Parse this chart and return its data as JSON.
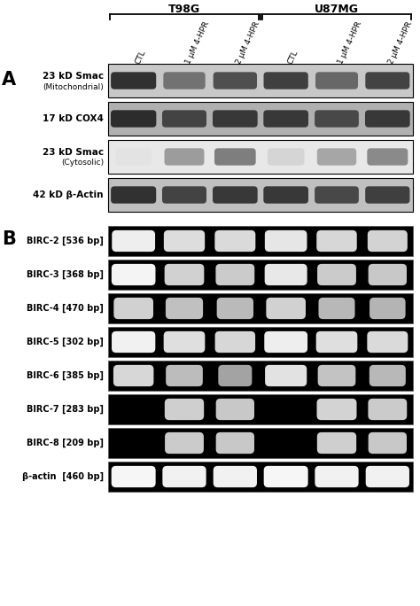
{
  "fig_width": 4.74,
  "fig_height": 6.84,
  "dpi": 100,
  "bg_color": "#ffffff",
  "header_groups": [
    [
      "T98G",
      0,
      3
    ],
    [
      "U87MG",
      3,
      6
    ]
  ],
  "col_labels": [
    "CTL",
    "1 μM 4-HPR",
    "2 μM 4-HPR",
    "CTL",
    "1 μM 4-HPR",
    "2 μM 4-HPR"
  ],
  "section_A_label": "A",
  "section_B_label": "B",
  "western_blot_rows": [
    {
      "label_line1": "23 kD Smac",
      "label_line2": "(Mitochondrial)",
      "bg": "#c8c8c8",
      "bands": [
        0.88,
        0.6,
        0.75,
        0.82,
        0.65,
        0.8
      ]
    },
    {
      "label_line1": "17 kD COX4",
      "label_line2": "",
      "bg": "#b0b0b0",
      "bands": [
        0.9,
        0.8,
        0.85,
        0.85,
        0.78,
        0.85
      ]
    },
    {
      "label_line1": "23 kD Smac",
      "label_line2": "(Cytosolic)",
      "bg": "#e8e8e8",
      "bands": [
        0.12,
        0.42,
        0.55,
        0.18,
        0.38,
        0.5
      ]
    },
    {
      "label_line1": "42 kD β-Actin",
      "label_line2": "",
      "bg": "#c0c0c0",
      "bands": [
        0.88,
        0.8,
        0.85,
        0.85,
        0.78,
        0.82
      ]
    }
  ],
  "gel_rows": [
    {
      "label": "BIRC-2 [536 bp]",
      "bands": [
        0.85,
        0.7,
        0.68,
        0.78,
        0.65,
        0.62
      ]
    },
    {
      "label": "BIRC-3 [368 bp]",
      "bands": [
        0.9,
        0.6,
        0.55,
        0.8,
        0.55,
        0.52
      ]
    },
    {
      "label": "BIRC-4 [470 bp]",
      "bands": [
        0.6,
        0.45,
        0.4,
        0.6,
        0.38,
        0.35
      ]
    },
    {
      "label": "BIRC-5 [302 bp]",
      "bands": [
        0.88,
        0.72,
        0.65,
        0.85,
        0.72,
        0.68
      ]
    },
    {
      "label": "BIRC-6 [385 bp]",
      "bands": [
        0.65,
        0.42,
        0.2,
        0.75,
        0.48,
        0.38
      ]
    },
    {
      "label": "BIRC-7 [283 bp]",
      "bands": [
        0.0,
        0.58,
        0.52,
        0.0,
        0.62,
        0.55
      ]
    },
    {
      "label": "BIRC-8 [209 bp]",
      "bands": [
        0.0,
        0.55,
        0.52,
        0.0,
        0.58,
        0.52
      ]
    },
    {
      "label": "β-actin  [460 bp]",
      "bands": [
        0.92,
        0.88,
        0.88,
        0.92,
        0.88,
        0.88
      ]
    }
  ]
}
